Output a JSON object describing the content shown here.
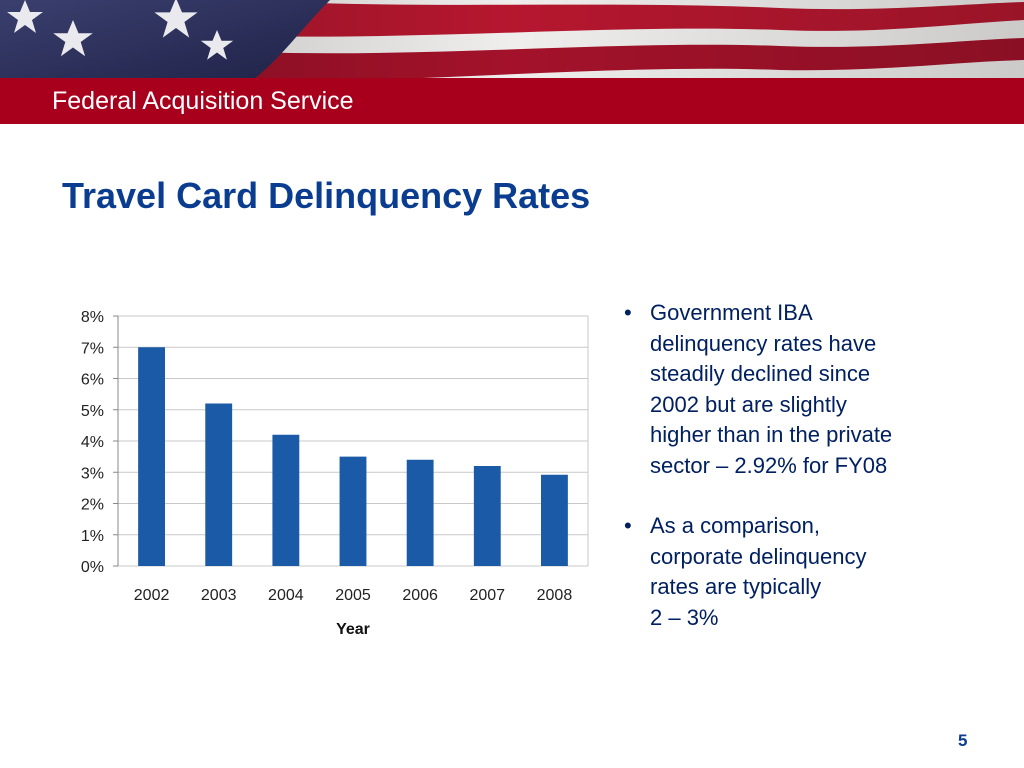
{
  "header": {
    "org_name": "Federal Acquisition Service"
  },
  "slide": {
    "title": "Travel Card Delinquency Rates",
    "page_number": "5"
  },
  "bullets": [
    {
      "lines": [
        "Government IBA",
        "delinquency rates have",
        "steadily declined since",
        "2002 but are slightly",
        "higher than in the private",
        "sector – 2.92% for FY08"
      ]
    },
    {
      "lines": [
        "As a comparison,",
        "corporate delinquency",
        "rates are typically",
        "2 – 3%"
      ]
    }
  ],
  "colors": {
    "bar": "#1a5aa6",
    "title": "#0a3d8f",
    "red_band": "#a8001c",
    "bullet_text": "#002060"
  },
  "chart_data": {
    "type": "bar",
    "categories": [
      "2002",
      "2003",
      "2004",
      "2005",
      "2006",
      "2007",
      "2008"
    ],
    "values": [
      7.0,
      5.2,
      4.2,
      3.5,
      3.4,
      3.2,
      2.92
    ],
    "title": "",
    "xlabel": "Year",
    "ylabel": "",
    "ylim": [
      0,
      8
    ],
    "yticks": [
      "0%",
      "1%",
      "2%",
      "3%",
      "4%",
      "5%",
      "6%",
      "7%",
      "8%"
    ],
    "grid": true,
    "legend": "none"
  }
}
